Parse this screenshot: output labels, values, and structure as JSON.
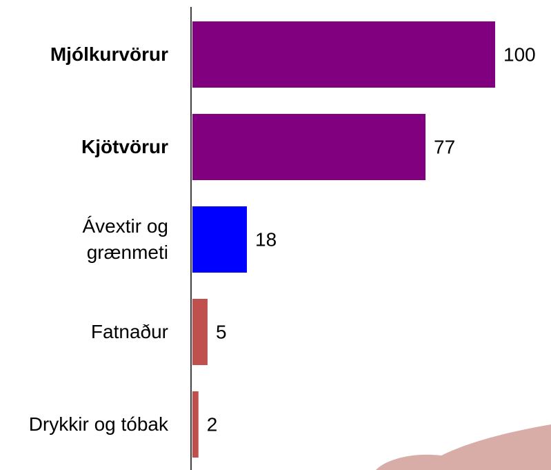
{
  "chart_data": {
    "type": "bar",
    "orientation": "horizontal",
    "categories": [
      "Mjólkurvörur",
      "Kjötvörur",
      "Ávextir og grænmeti",
      "Fatnaður",
      "Drykkir og tóbak"
    ],
    "values": [
      100,
      77,
      18,
      5,
      2
    ],
    "colors": [
      "#800080",
      "#800080",
      "#0000ff",
      "#c0504d",
      "#c0504d"
    ],
    "bold_categories": [
      true,
      true,
      false,
      false,
      false
    ]
  }
}
